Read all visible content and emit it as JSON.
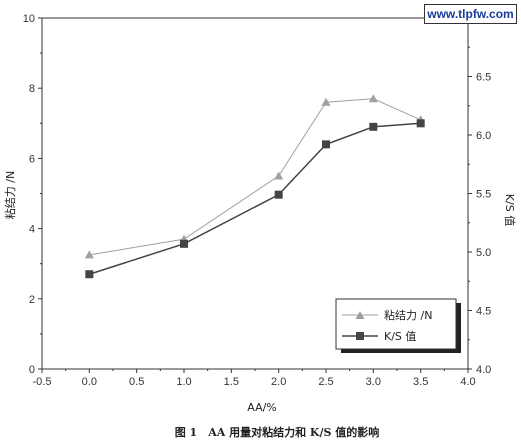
{
  "watermark": "www.tlpfw.com",
  "caption": "图 1　AA 用量对粘结力和 K/S 值的影响",
  "chart_data": {
    "type": "line",
    "xlabel": "AA/%",
    "ylabel_left": "粘结力 /N",
    "ylabel_right": "K/S 值",
    "xlim": [
      -0.5,
      4.0
    ],
    "ylim_left": [
      0,
      10
    ],
    "ylim_right": [
      4.0,
      7.0
    ],
    "x_ticks": [
      "-0.5",
      "0.0",
      "0.5",
      "1.0",
      "1.5",
      "2.0",
      "2.5",
      "3.0",
      "3.5",
      "4.0"
    ],
    "y_left_ticks": [
      "0",
      "2",
      "4",
      "6",
      "8",
      "10"
    ],
    "y_right_ticks": [
      "4.0",
      "4.5",
      "5.0",
      "5.5",
      "6.0",
      "6.5"
    ],
    "grid": false,
    "legend_position": "bottom-right",
    "series": [
      {
        "name": "粘结力 /N",
        "axis": "left",
        "marker": "triangle",
        "color": "#a0a0a0",
        "x": [
          0.0,
          1.0,
          2.0,
          2.5,
          3.0,
          3.5
        ],
        "y": [
          3.25,
          3.7,
          5.5,
          7.6,
          7.7,
          7.1
        ]
      },
      {
        "name": "K/S 值",
        "axis": "right",
        "marker": "square",
        "color": "#444444",
        "x": [
          0.0,
          1.0,
          2.0,
          2.5,
          3.0,
          3.5
        ],
        "y": [
          4.81,
          5.07,
          5.49,
          5.92,
          6.07,
          6.1
        ]
      }
    ]
  }
}
